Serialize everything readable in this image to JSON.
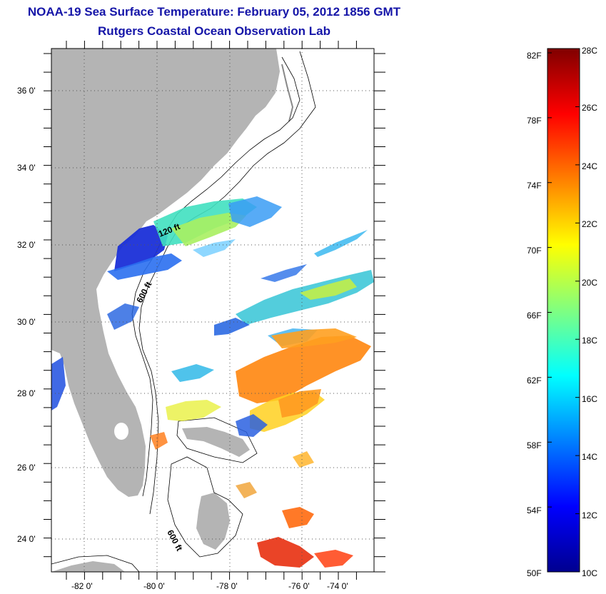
{
  "title": "NOAA-19 Sea Surface Temperature:  February 05, 2012 1856 GMT",
  "subtitle": "Rutgers Coastal Ocean Observation Lab",
  "map": {
    "lat_labels": [
      "36 0'",
      "34 0'",
      "32 0'",
      "30 0'",
      "28 0'",
      "26 0'",
      "24 0'"
    ],
    "lon_labels": [
      "-82 0'",
      "-80 0'",
      "-78 0'",
      "-76 0'",
      "-74 0'"
    ],
    "contour_labels": [
      "120 ft",
      "600 ft",
      "600 ft"
    ],
    "land_color": "#b4b4b4"
  },
  "colorbar": {
    "fahrenheit": [
      "82F",
      "78F",
      "74F",
      "70F",
      "66F",
      "62F",
      "58F",
      "54F",
      "50F"
    ],
    "celsius": [
      "28C",
      "26C",
      "24C",
      "22C",
      "20C",
      "18C",
      "16C",
      "14C",
      "12C",
      "10C"
    ],
    "colormap": "jet"
  }
}
